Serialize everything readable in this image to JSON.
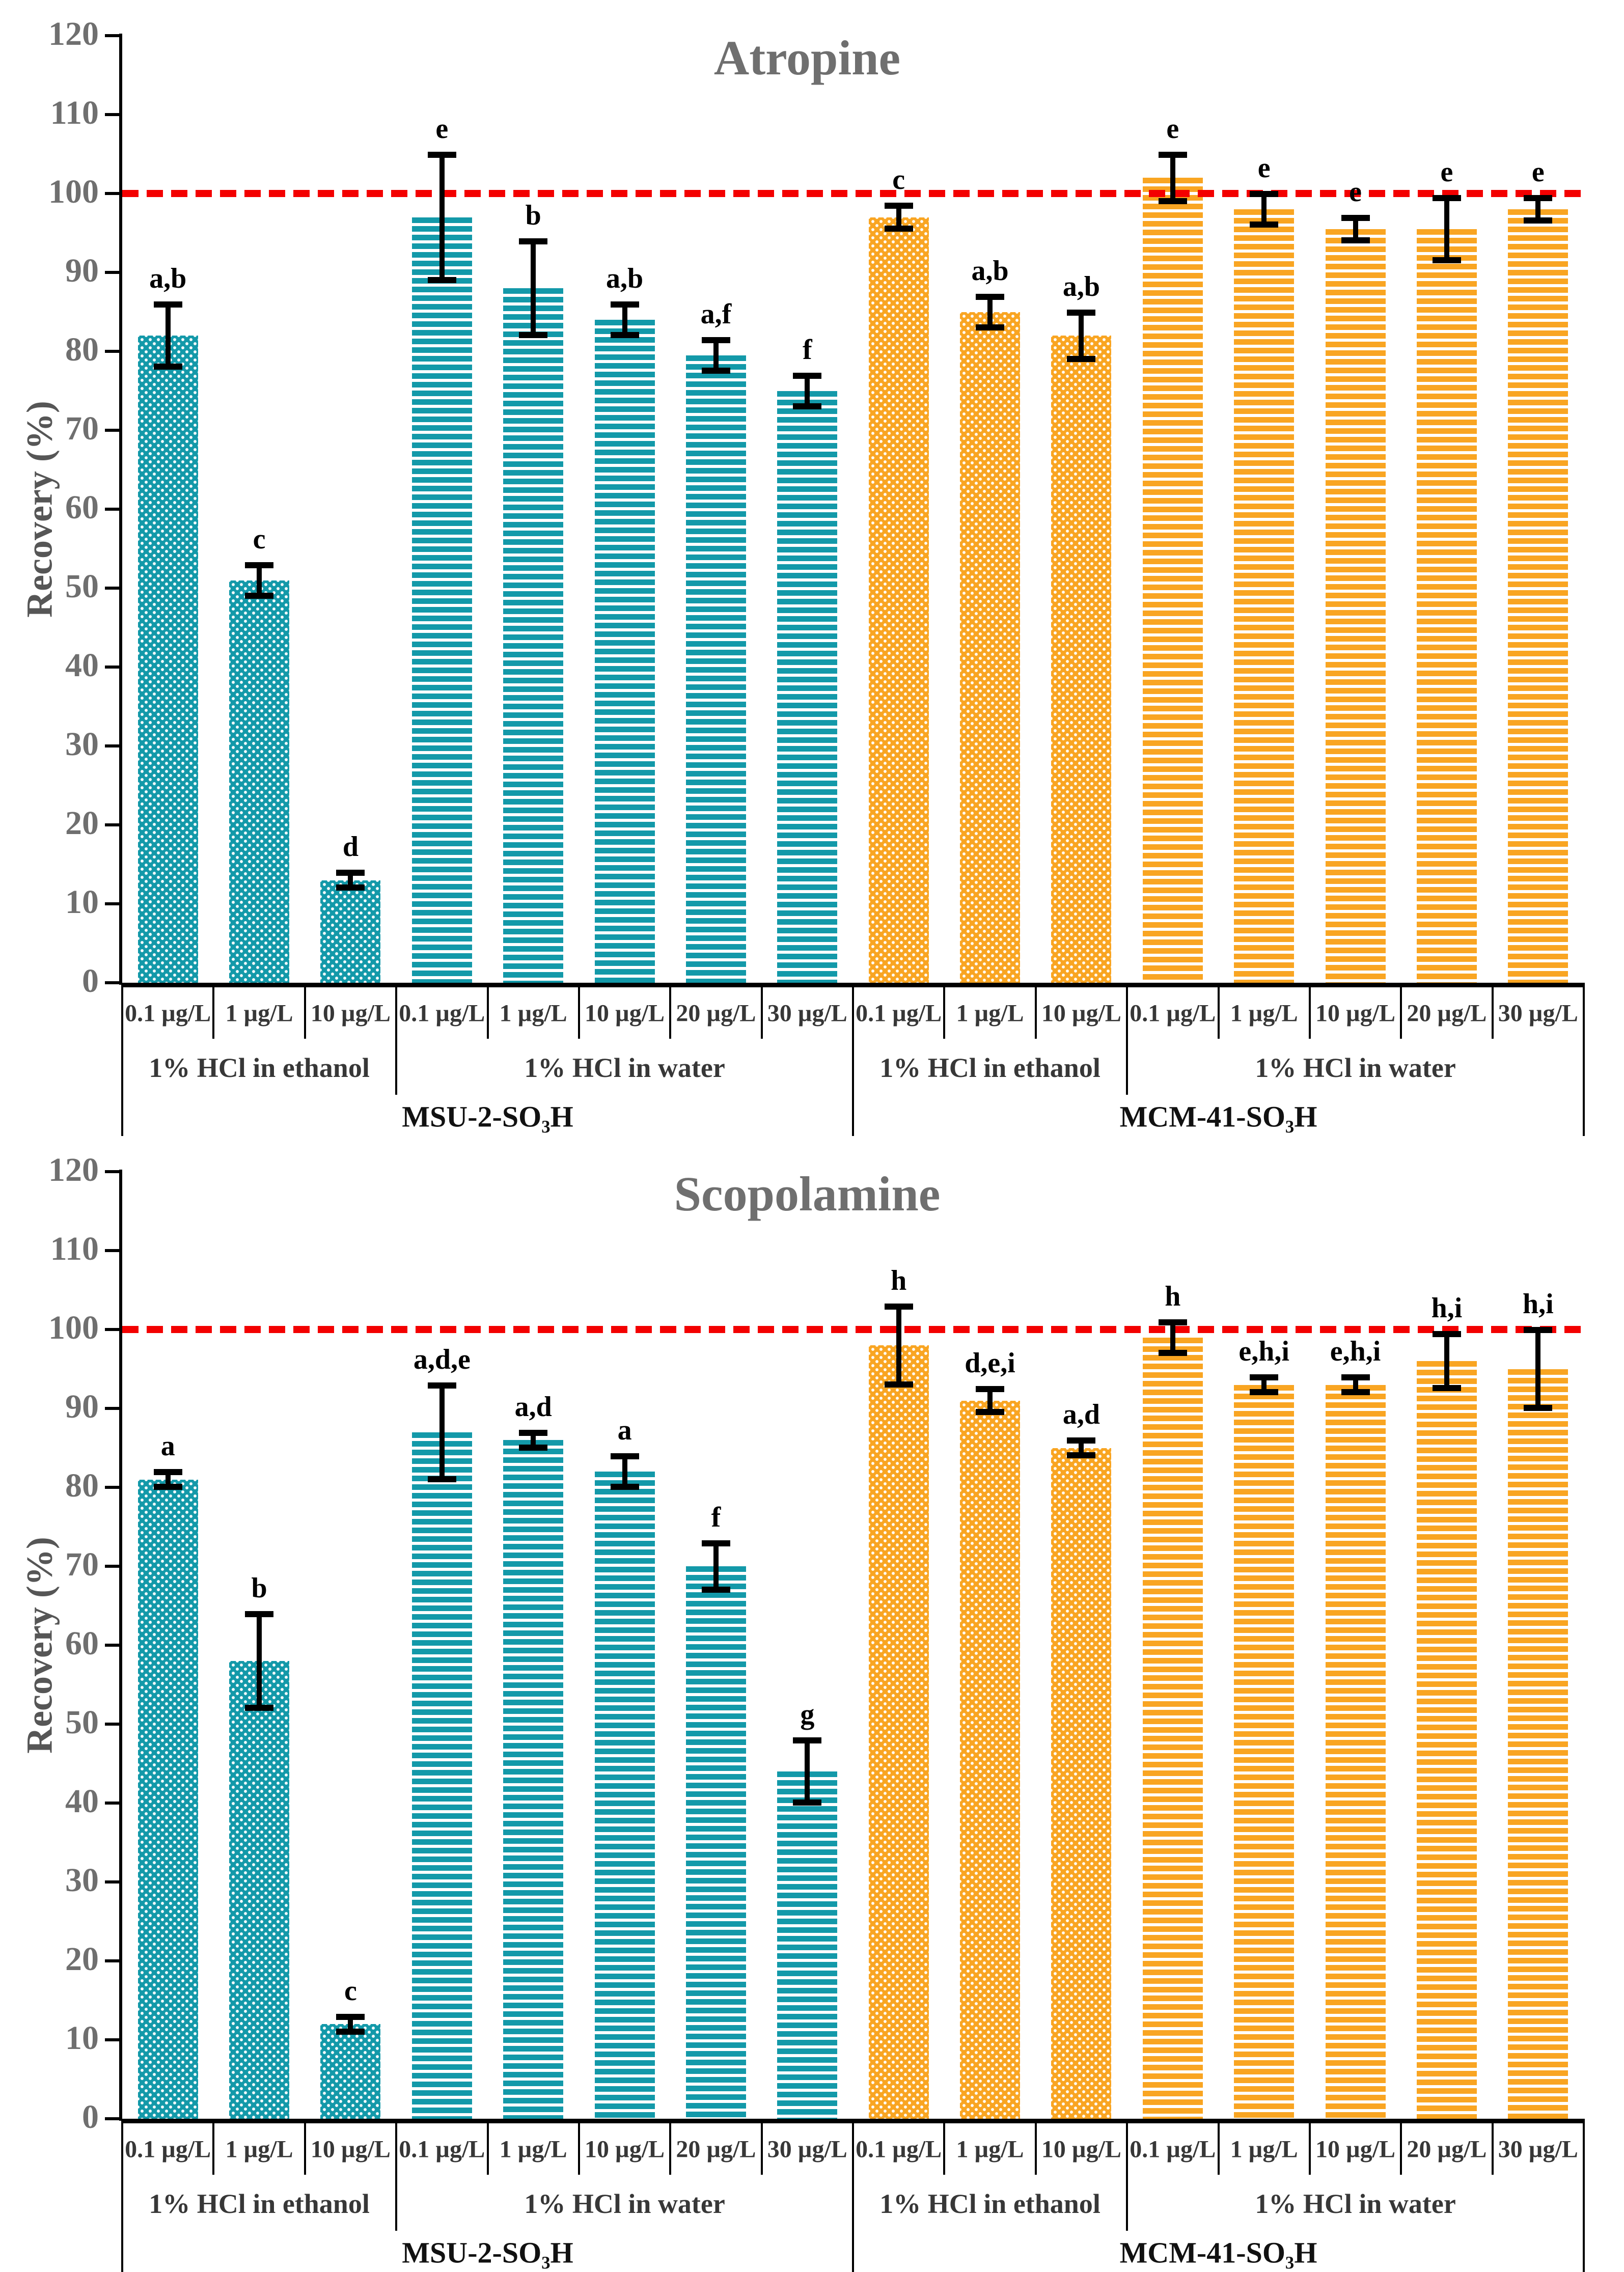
{
  "figure": {
    "background": "#FFFFFF"
  },
  "chart_data": [
    {
      "type": "bar",
      "title": "Atropine",
      "ylabel": "Recovery (%)",
      "ylim": [
        0,
        120
      ],
      "ytick_step": 10,
      "yticks": [
        0,
        10,
        20,
        30,
        40,
        50,
        60,
        70,
        80,
        90,
        100,
        110,
        120
      ],
      "grid": false,
      "legend": false,
      "ref_line": {
        "value": 100,
        "color": "#F30000",
        "style": "dashed"
      },
      "groups": [
        {
          "sorbent": "MSU-2-SO₃H",
          "solvent": "1% HCl in ethanol",
          "color": "#1399A9",
          "pattern": "dots",
          "bars": [
            {
              "label": "0.1 µg/L",
              "value": 82,
              "err": 4,
              "letter": "a,b"
            },
            {
              "label": "1 µg/L",
              "value": 51,
              "err": 2,
              "letter": "c"
            },
            {
              "label": "10 µg/L",
              "value": 13,
              "err": 1,
              "letter": "d"
            }
          ]
        },
        {
          "sorbent": "MSU-2-SO₃H",
          "solvent": "1% HCl in water",
          "color": "#1399A9",
          "pattern": "stripes",
          "bars": [
            {
              "label": "0.1 µg/L",
              "value": 97,
              "err": 8,
              "letter": "e"
            },
            {
              "label": "1 µg/L",
              "value": 88,
              "err": 6,
              "letter": "b"
            },
            {
              "label": "10 µg/L",
              "value": 84,
              "err": 2,
              "letter": "a,b"
            },
            {
              "label": "20 µg/L",
              "value": 79.5,
              "err": 2,
              "letter": "a,f"
            },
            {
              "label": "30 µg/L",
              "value": 75,
              "err": 2,
              "letter": "f"
            }
          ]
        },
        {
          "sorbent": "MCM-41-SO₃H",
          "solvent": "1% HCl in ethanol",
          "color": "#F9A522",
          "pattern": "dots",
          "bars": [
            {
              "label": "0.1 µg/L",
              "value": 97,
              "err": 1.5,
              "letter": "c"
            },
            {
              "label": "1 µg/L",
              "value": 85,
              "err": 2,
              "letter": "a,b"
            },
            {
              "label": "10 µg/L",
              "value": 82,
              "err": 3,
              "letter": "a,b"
            }
          ]
        },
        {
          "sorbent": "MCM-41-SO₃H",
          "solvent": "1% HCl in water",
          "color": "#F9A522",
          "pattern": "stripes",
          "bars": [
            {
              "label": "0.1 µg/L",
              "value": 102,
              "err": 3,
              "letter": "e"
            },
            {
              "label": "1 µg/L",
              "value": 98,
              "err": 2,
              "letter": "e"
            },
            {
              "label": "10 µg/L",
              "value": 95.5,
              "err": 1.5,
              "letter": "e"
            },
            {
              "label": "20 µg/L",
              "value": 95.5,
              "err": 4,
              "letter": "e"
            },
            {
              "label": "30 µg/L",
              "value": 98,
              "err": 1.5,
              "letter": "e"
            }
          ]
        }
      ]
    },
    {
      "type": "bar",
      "title": "Scopolamine",
      "ylabel": "Recovery (%)",
      "ylim": [
        0,
        120
      ],
      "ytick_step": 10,
      "yticks": [
        0,
        10,
        20,
        30,
        40,
        50,
        60,
        70,
        80,
        90,
        100,
        110,
        120
      ],
      "grid": false,
      "legend": false,
      "ref_line": {
        "value": 100,
        "color": "#F30000",
        "style": "dashed"
      },
      "groups": [
        {
          "sorbent": "MSU-2-SO₃H",
          "solvent": "1% HCl in ethanol",
          "color": "#1399A9",
          "pattern": "dots",
          "bars": [
            {
              "label": "0.1 µg/L",
              "value": 81,
              "err": 1,
              "letter": "a"
            },
            {
              "label": "1 µg/L",
              "value": 58,
              "err": 6,
              "letter": "b"
            },
            {
              "label": "10 µg/L",
              "value": 12,
              "err": 1,
              "letter": "c"
            }
          ]
        },
        {
          "sorbent": "MSU-2-SO₃H",
          "solvent": "1% HCl in water",
          "color": "#1399A9",
          "pattern": "stripes",
          "bars": [
            {
              "label": "0.1 µg/L",
              "value": 87,
              "err": 6,
              "letter": "a,d,e"
            },
            {
              "label": "1 µg/L",
              "value": 86,
              "err": 1,
              "letter": "a,d"
            },
            {
              "label": "10 µg/L",
              "value": 82,
              "err": 2,
              "letter": "a"
            },
            {
              "label": "20 µg/L",
              "value": 70,
              "err": 3,
              "letter": "f"
            },
            {
              "label": "30 µg/L",
              "value": 44,
              "err": 4,
              "letter": "g"
            }
          ]
        },
        {
          "sorbent": "MCM-41-SO₃H",
          "solvent": "1% HCl in ethanol",
          "color": "#F9A522",
          "pattern": "dots",
          "bars": [
            {
              "label": "0.1 µg/L",
              "value": 98,
              "err": 5,
              "letter": "h"
            },
            {
              "label": "1 µg/L",
              "value": 91,
              "err": 1.5,
              "letter": "d,e,i"
            },
            {
              "label": "10 µg/L",
              "value": 85,
              "err": 1,
              "letter": "a,d"
            }
          ]
        },
        {
          "sorbent": "MCM-41-SO₃H",
          "solvent": "1% HCl in water",
          "color": "#F9A522",
          "pattern": "stripes",
          "bars": [
            {
              "label": "0.1 µg/L",
              "value": 99,
              "err": 2,
              "letter": "h"
            },
            {
              "label": "1 µg/L",
              "value": 93,
              "err": 1,
              "letter": "e,h,i"
            },
            {
              "label": "10 µg/L",
              "value": 93,
              "err": 1,
              "letter": "e,h,i"
            },
            {
              "label": "20 µg/L",
              "value": 96,
              "err": 3.5,
              "letter": "h,i"
            },
            {
              "label": "30 µg/L",
              "value": 95,
              "err": 5,
              "letter": "h,i"
            }
          ]
        }
      ]
    }
  ]
}
